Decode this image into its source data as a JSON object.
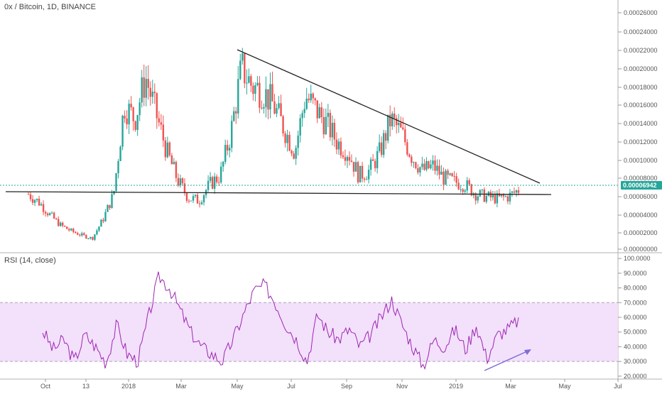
{
  "header": {
    "title": "0x / Bitcoin, 1D, BINANCE",
    "rsi_title": "RSI (14, close)"
  },
  "colors": {
    "up": "#26a69a",
    "down": "#ef5350",
    "rsi_line": "#9c27b0",
    "rsi_band": "#f3e0fb",
    "price_label_bg": "#26a69a",
    "trendline": "#222222",
    "arrow": "#7e6fd6"
  },
  "chart_data": [
    {
      "type": "candlestick",
      "title": "0x / Bitcoin, 1D, BINANCE",
      "xlabel": "",
      "ylabel": "",
      "x_ticks": [
        "Oct",
        "13",
        "2018",
        "Mar",
        "May",
        "Jul",
        "Sep",
        "Nov",
        "2019",
        "Mar",
        "May",
        "Jul"
      ],
      "y_ticks": [
        "0.00026000",
        "0.00024000",
        "0.00022000",
        "0.00020000",
        "0.00018000",
        "0.00016000",
        "0.00014000",
        "0.00012000",
        "0.00010000",
        "0.00008000",
        "0.00006000",
        "0.00004000",
        "0.00002000",
        "0.00000000"
      ],
      "ylim": [
        0,
        0.00027
      ],
      "last_price": "0.00006942",
      "series": [
        {
          "closes": [
            6.48e-05,
            5.62e-05,
            4.3e-05,
            3.18e-05,
            2.55e-05,
            2.1e-05,
            1.75e-05,
            3.8e-05,
            6.5e-05,
            0.00016,
            0.000145,
            0.00019,
            0.00015,
            0.00011,
            8e-05,
            6.1e-05,
            5.8e-05,
            7.5e-05,
            8.5e-05,
            0.00013,
            0.0002,
            0.00018,
            0.000175,
            0.00016,
            0.000135,
            0.00011,
            0.00017,
            0.000155,
            0.00014,
            0.00012,
            0.00011,
            8.5e-05,
            9e-05,
            0.00011,
            0.000145,
            0.00013,
            0.000105,
            9e-05,
            9.5e-05,
            8.2e-05,
            7.8e-05,
            7.5e-05,
            6.5e-05,
            6.2e-05,
            6e-05,
            6.2e-05,
            6.94e-05
          ]
        },
        {
          "name": "trendlines",
          "annotations": [
            {
              "from": [
                "May 2018",
                0.00022
              ],
              "to": [
                "Apr 2019",
                7.2e-05
              ]
            },
            {
              "from": [
                "Sep 2017",
                6.55e-05
              ],
              "to": [
                "May 2019",
                6e-05
              ]
            }
          ]
        }
      ]
    },
    {
      "type": "line",
      "title": "RSI (14, close)",
      "y_ticks": [
        "100.0000",
        "90.0000",
        "80.0000",
        "70.0000",
        "60.0000",
        "50.0000",
        "40.0000",
        "30.0000",
        "20.0000"
      ],
      "ylim": [
        18,
        102
      ],
      "band": [
        30,
        70
      ],
      "series": [
        {
          "values": [
            51,
            38,
            45,
            30,
            48,
            40,
            29,
            55,
            35,
            30,
            60,
            88,
            80,
            65,
            50,
            40,
            35,
            30,
            45,
            62,
            78,
            82,
            70,
            55,
            45,
            30,
            62,
            50,
            45,
            52,
            40,
            48,
            60,
            72,
            55,
            40,
            27,
            45,
            40,
            52,
            38,
            55,
            32,
            48,
            52,
            58
          ]
        }
      ]
    }
  ]
}
